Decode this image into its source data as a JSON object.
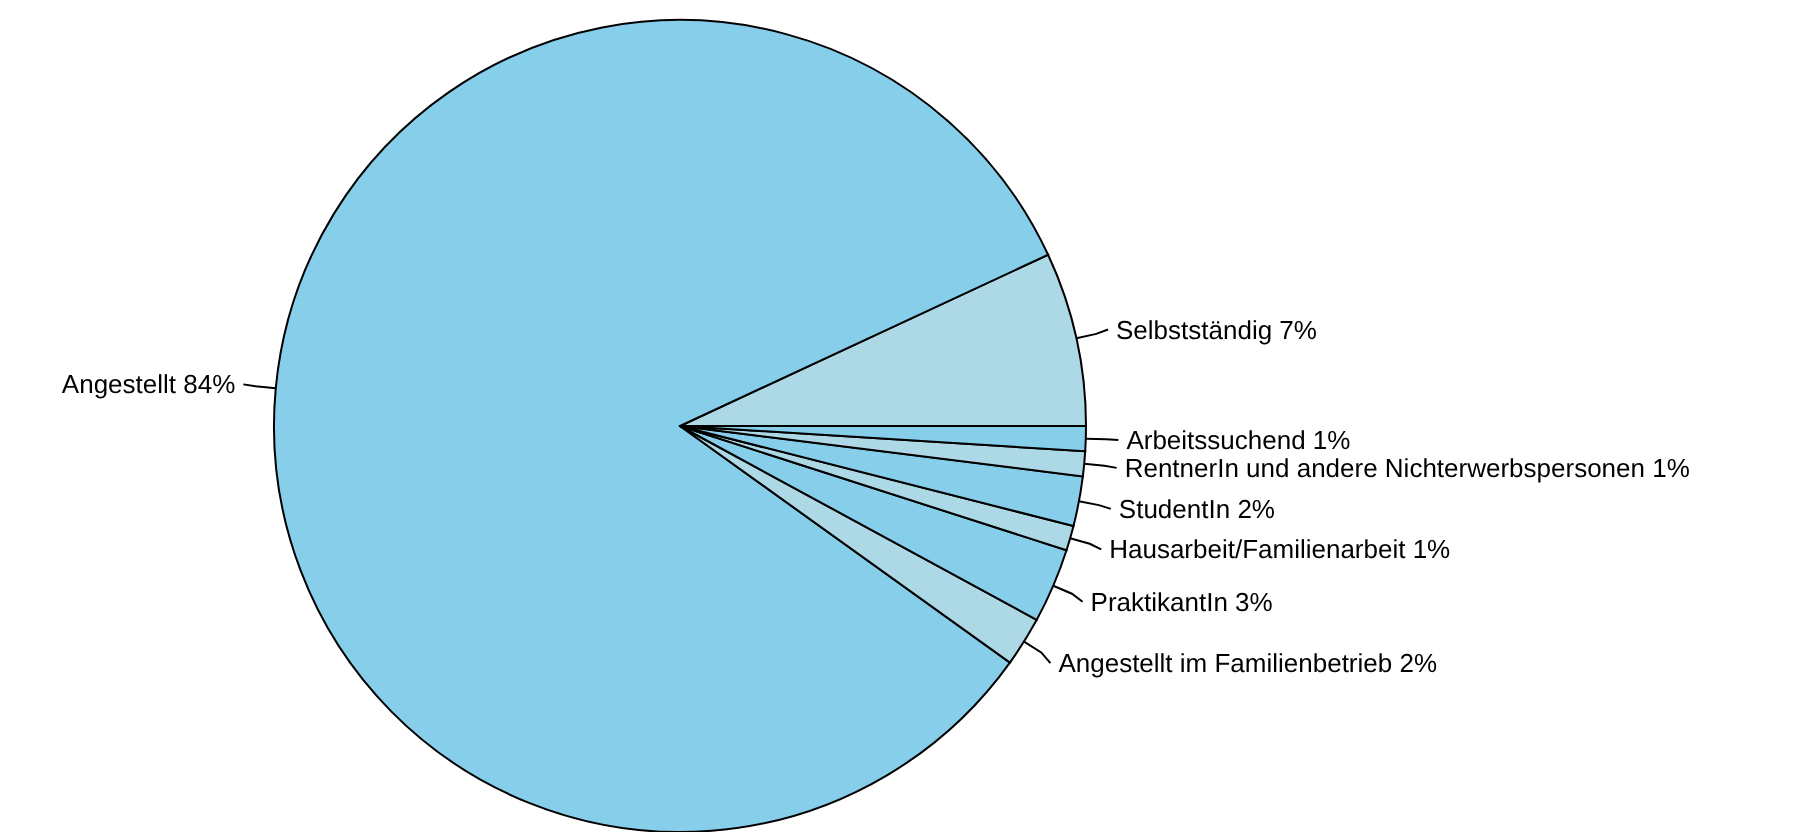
{
  "chart_data": {
    "type": "pie",
    "categories": [
      "Selbstständig",
      "Angestellt",
      "Angestellt im Familienbetrieb",
      "PraktikantIn",
      "Hausarbeit/Familienarbeit",
      "StudentIn",
      "RentnerIn und andere Nichterwerbspersonen",
      "Arbeitssuchend"
    ],
    "values": [
      7,
      84,
      2,
      3,
      1,
      2,
      1,
      1
    ],
    "value_labels": [
      "7%",
      "84%",
      "2%",
      "3%",
      "1%",
      "2%",
      "1%",
      "1%"
    ],
    "colors": [
      "#add8e6",
      "#87ceeb",
      "#add8e6",
      "#87ceeb",
      "#add8e6",
      "#87ceeb",
      "#add8e6",
      "#87ceeb"
    ],
    "legend": false
  }
}
